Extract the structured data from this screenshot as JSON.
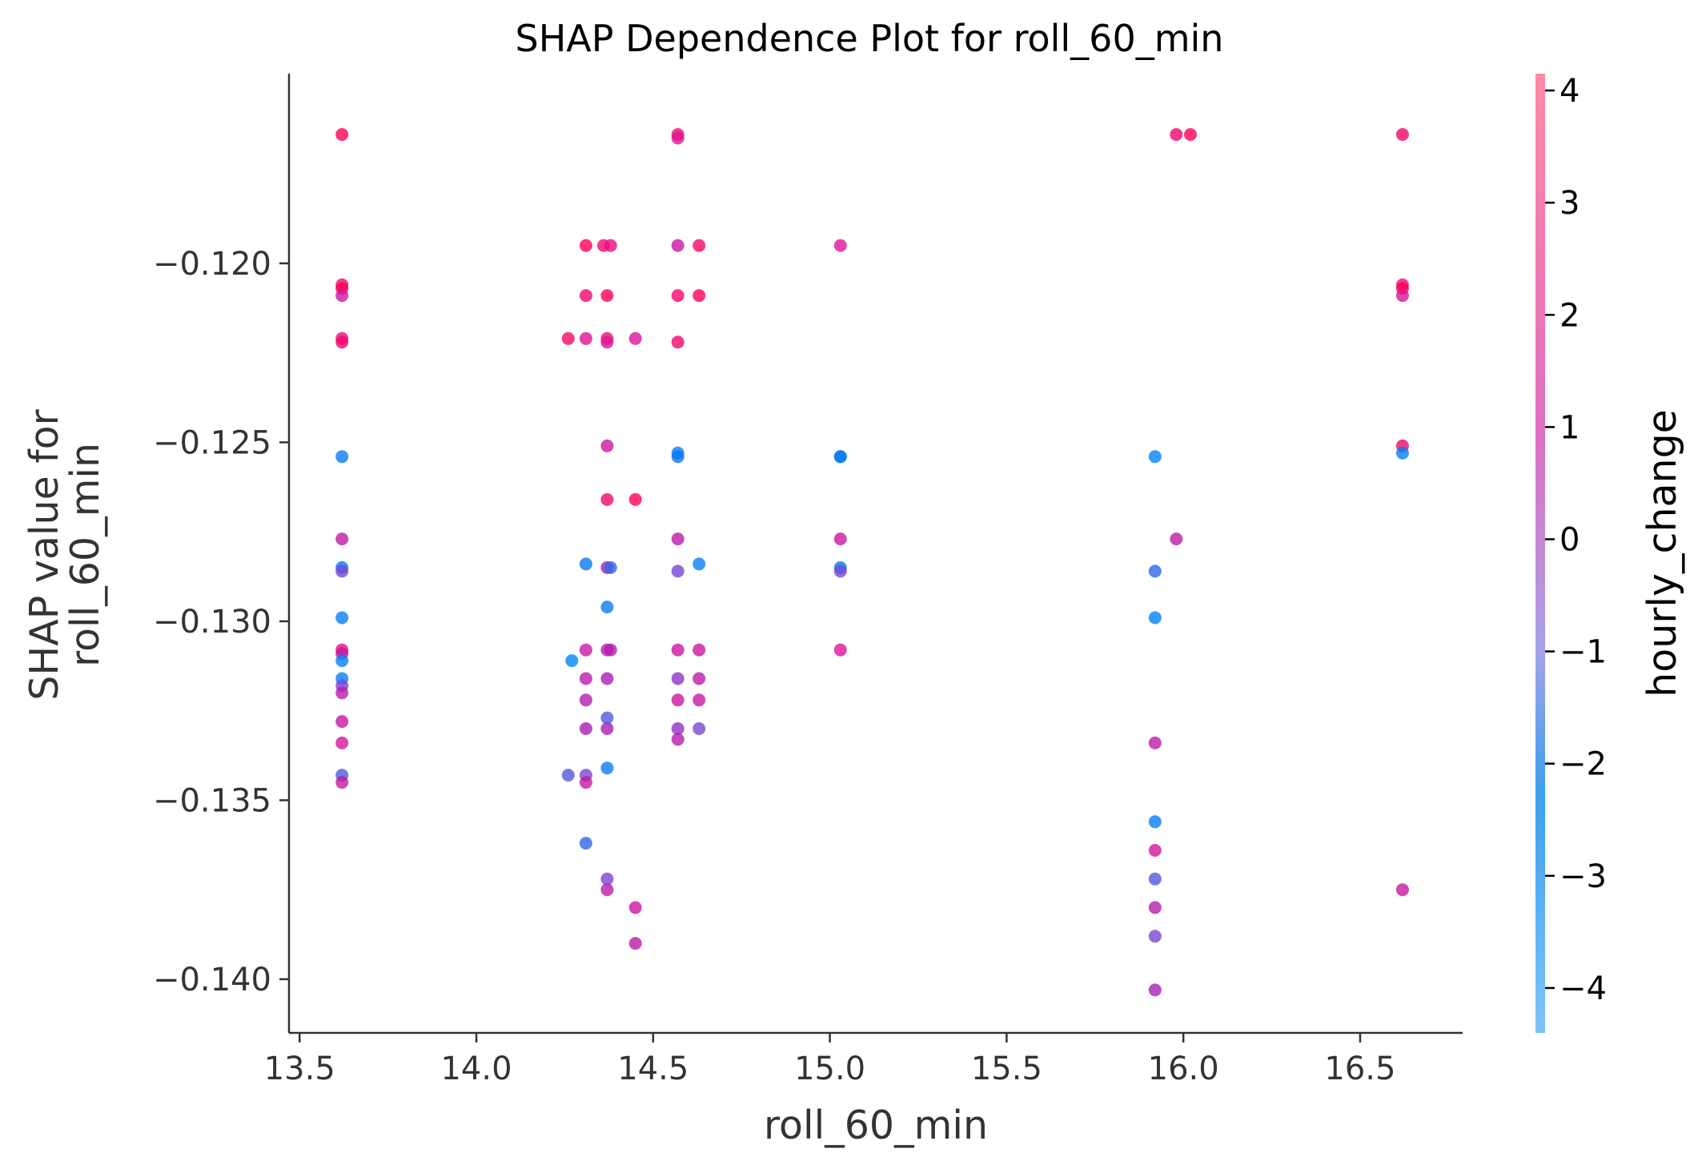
{
  "chart_data": {
    "type": "scatter",
    "title": "SHAP Dependence Plot for roll_60_min",
    "xlabel": "roll_60_min",
    "ylabel_line1": "SHAP value for",
    "ylabel_line2": "roll_60_min",
    "xlim": [
      13.47,
      16.79
    ],
    "ylim": [
      -0.1415,
      -0.1147
    ],
    "x_ticks": [
      13.5,
      14.0,
      14.5,
      15.0,
      15.5,
      16.0,
      16.5
    ],
    "x_tick_labels": [
      "13.5",
      "14.0",
      "14.5",
      "15.0",
      "15.5",
      "16.0",
      "16.5"
    ],
    "y_ticks": [
      -0.12,
      -0.125,
      -0.13,
      -0.135,
      -0.14
    ],
    "y_tick_labels": [
      "−0.120",
      "−0.125",
      "−0.130",
      "−0.135",
      "−0.140"
    ],
    "colorbar": {
      "label": "hourly_change",
      "range": [
        -4.4,
        4.15
      ],
      "ticks": [
        4,
        3,
        2,
        1,
        0,
        -1,
        -2,
        -3,
        -4
      ],
      "tick_labels": [
        "4",
        "3",
        "2",
        "1",
        "0",
        "−1",
        "−2",
        "−3",
        "−4"
      ],
      "colormap": "shap red_blue"
    },
    "grid": false,
    "points": [
      {
        "x": 13.62,
        "y": -0.1164,
        "c": 3.0
      },
      {
        "x": 13.62,
        "y": -0.1206,
        "c": 2.5
      },
      {
        "x": 13.62,
        "y": -0.1207,
        "c": 3.0
      },
      {
        "x": 13.62,
        "y": -0.1209,
        "c": 1.0
      },
      {
        "x": 13.62,
        "y": -0.1221,
        "c": 2.0
      },
      {
        "x": 13.62,
        "y": -0.1222,
        "c": 2.5
      },
      {
        "x": 13.62,
        "y": -0.1254,
        "c": -3.0
      },
      {
        "x": 13.62,
        "y": -0.1277,
        "c": 0.5
      },
      {
        "x": 13.62,
        "y": -0.1285,
        "c": -2.5
      },
      {
        "x": 13.62,
        "y": -0.1286,
        "c": -1.0
      },
      {
        "x": 13.62,
        "y": -0.1299,
        "c": -3.0
      },
      {
        "x": 13.62,
        "y": -0.1308,
        "c": 2.0
      },
      {
        "x": 13.62,
        "y": -0.1309,
        "c": 1.0
      },
      {
        "x": 13.62,
        "y": -0.1311,
        "c": -3.5
      },
      {
        "x": 13.62,
        "y": -0.1316,
        "c": -3.0
      },
      {
        "x": 13.62,
        "y": -0.1318,
        "c": -1.0
      },
      {
        "x": 13.62,
        "y": -0.132,
        "c": 0.5
      },
      {
        "x": 13.62,
        "y": -0.1328,
        "c": 0.8
      },
      {
        "x": 13.62,
        "y": -0.1334,
        "c": 1.2
      },
      {
        "x": 13.62,
        "y": -0.1343,
        "c": -1.5
      },
      {
        "x": 13.62,
        "y": -0.1345,
        "c": 0.8
      },
      {
        "x": 14.26,
        "y": -0.1221,
        "c": 2.5
      },
      {
        "x": 14.26,
        "y": -0.1343,
        "c": -1.5
      },
      {
        "x": 14.27,
        "y": -0.1311,
        "c": -4.0
      },
      {
        "x": 14.31,
        "y": -0.1195,
        "c": 3.0
      },
      {
        "x": 14.31,
        "y": -0.1209,
        "c": 2.5
      },
      {
        "x": 14.31,
        "y": -0.1221,
        "c": 1.5
      },
      {
        "x": 14.31,
        "y": -0.1284,
        "c": -2.5
      },
      {
        "x": 14.31,
        "y": -0.1308,
        "c": 1.0
      },
      {
        "x": 14.31,
        "y": -0.1316,
        "c": 0.5
      },
      {
        "x": 14.31,
        "y": -0.1322,
        "c": 0.2
      },
      {
        "x": 14.31,
        "y": -0.133,
        "c": 0.0
      },
      {
        "x": 14.31,
        "y": -0.1343,
        "c": -1.0
      },
      {
        "x": 14.31,
        "y": -0.1345,
        "c": 0.8
      },
      {
        "x": 14.31,
        "y": -0.1362,
        "c": -2.0
      },
      {
        "x": 14.36,
        "y": -0.1195,
        "c": 2.5
      },
      {
        "x": 14.37,
        "y": -0.1209,
        "c": 3.5
      },
      {
        "x": 14.37,
        "y": -0.1221,
        "c": 2.0
      },
      {
        "x": 14.37,
        "y": -0.1222,
        "c": 1.5
      },
      {
        "x": 14.37,
        "y": -0.1251,
        "c": 1.0
      },
      {
        "x": 14.37,
        "y": -0.1266,
        "c": 2.5
      },
      {
        "x": 14.37,
        "y": -0.1285,
        "c": 0.0
      },
      {
        "x": 14.37,
        "y": -0.1296,
        "c": -3.0
      },
      {
        "x": 14.37,
        "y": -0.1308,
        "c": 0.5
      },
      {
        "x": 14.37,
        "y": -0.1316,
        "c": 0.0
      },
      {
        "x": 14.37,
        "y": -0.1327,
        "c": -1.5
      },
      {
        "x": 14.37,
        "y": -0.133,
        "c": 0.0
      },
      {
        "x": 14.37,
        "y": -0.1341,
        "c": -3.0
      },
      {
        "x": 14.37,
        "y": -0.1372,
        "c": -1.0
      },
      {
        "x": 14.37,
        "y": -0.1375,
        "c": 0.5
      },
      {
        "x": 14.38,
        "y": -0.1195,
        "c": 2.0
      },
      {
        "x": 14.38,
        "y": -0.1308,
        "c": 0.3
      },
      {
        "x": 14.38,
        "y": -0.1285,
        "c": -2.0
      },
      {
        "x": 14.45,
        "y": -0.1221,
        "c": 1.5
      },
      {
        "x": 14.45,
        "y": -0.1266,
        "c": 3.0
      },
      {
        "x": 14.45,
        "y": -0.138,
        "c": 1.0
      },
      {
        "x": 14.45,
        "y": -0.139,
        "c": 0.5
      },
      {
        "x": 14.57,
        "y": -0.1164,
        "c": 2.5
      },
      {
        "x": 14.57,
        "y": -0.1165,
        "c": 1.5
      },
      {
        "x": 14.57,
        "y": -0.1195,
        "c": 1.0
      },
      {
        "x": 14.57,
        "y": -0.1209,
        "c": 2.5
      },
      {
        "x": 14.57,
        "y": -0.1222,
        "c": 2.5
      },
      {
        "x": 14.57,
        "y": -0.1253,
        "c": -3.0
      },
      {
        "x": 14.57,
        "y": -0.1254,
        "c": -2.5
      },
      {
        "x": 14.57,
        "y": -0.1277,
        "c": 0.5
      },
      {
        "x": 14.57,
        "y": -0.1286,
        "c": -1.0
      },
      {
        "x": 14.57,
        "y": -0.1308,
        "c": 1.0
      },
      {
        "x": 14.57,
        "y": -0.1316,
        "c": -0.5
      },
      {
        "x": 14.57,
        "y": -0.1322,
        "c": 1.0
      },
      {
        "x": 14.57,
        "y": -0.133,
        "c": -0.5
      },
      {
        "x": 14.57,
        "y": -0.1333,
        "c": 0.3
      },
      {
        "x": 14.63,
        "y": -0.1195,
        "c": 2.5
      },
      {
        "x": 14.63,
        "y": -0.1209,
        "c": 3.0
      },
      {
        "x": 14.63,
        "y": -0.1284,
        "c": -3.0
      },
      {
        "x": 14.63,
        "y": -0.1308,
        "c": 1.0
      },
      {
        "x": 14.63,
        "y": -0.1316,
        "c": 0.5
      },
      {
        "x": 14.63,
        "y": -0.1322,
        "c": 0.8
      },
      {
        "x": 14.63,
        "y": -0.133,
        "c": -1.0
      },
      {
        "x": 15.03,
        "y": -0.1195,
        "c": 1.5
      },
      {
        "x": 15.03,
        "y": -0.1254,
        "c": -3.0
      },
      {
        "x": 15.03,
        "y": -0.1254,
        "c": -2.5
      },
      {
        "x": 15.03,
        "y": -0.1277,
        "c": 1.0
      },
      {
        "x": 15.03,
        "y": -0.1285,
        "c": -2.5
      },
      {
        "x": 15.03,
        "y": -0.1286,
        "c": -1.0
      },
      {
        "x": 15.03,
        "y": -0.1308,
        "c": 1.5
      },
      {
        "x": 15.92,
        "y": -0.1254,
        "c": -3.5
      },
      {
        "x": 15.92,
        "y": -0.1286,
        "c": -2.0
      },
      {
        "x": 15.92,
        "y": -0.1299,
        "c": -3.5
      },
      {
        "x": 15.92,
        "y": -0.1334,
        "c": 0.5
      },
      {
        "x": 15.92,
        "y": -0.1356,
        "c": -3.0
      },
      {
        "x": 15.92,
        "y": -0.1364,
        "c": 1.2
      },
      {
        "x": 15.92,
        "y": -0.1372,
        "c": -1.5
      },
      {
        "x": 15.92,
        "y": -0.138,
        "c": 0.3
      },
      {
        "x": 15.92,
        "y": -0.1388,
        "c": -1.0
      },
      {
        "x": 15.92,
        "y": -0.1403,
        "c": 0.0
      },
      {
        "x": 15.98,
        "y": -0.1164,
        "c": 2.5
      },
      {
        "x": 15.98,
        "y": -0.1277,
        "c": 0.5
      },
      {
        "x": 16.02,
        "y": -0.1164,
        "c": 3.0
      },
      {
        "x": 16.62,
        "y": -0.1164,
        "c": 2.5
      },
      {
        "x": 16.62,
        "y": -0.1206,
        "c": 2.0
      },
      {
        "x": 16.62,
        "y": -0.1207,
        "c": 3.0
      },
      {
        "x": 16.62,
        "y": -0.1209,
        "c": 1.5
      },
      {
        "x": 16.62,
        "y": -0.1251,
        "c": 2.5
      },
      {
        "x": 16.62,
        "y": -0.1253,
        "c": -3.0
      },
      {
        "x": 16.62,
        "y": -0.1375,
        "c": 1.0
      }
    ]
  }
}
